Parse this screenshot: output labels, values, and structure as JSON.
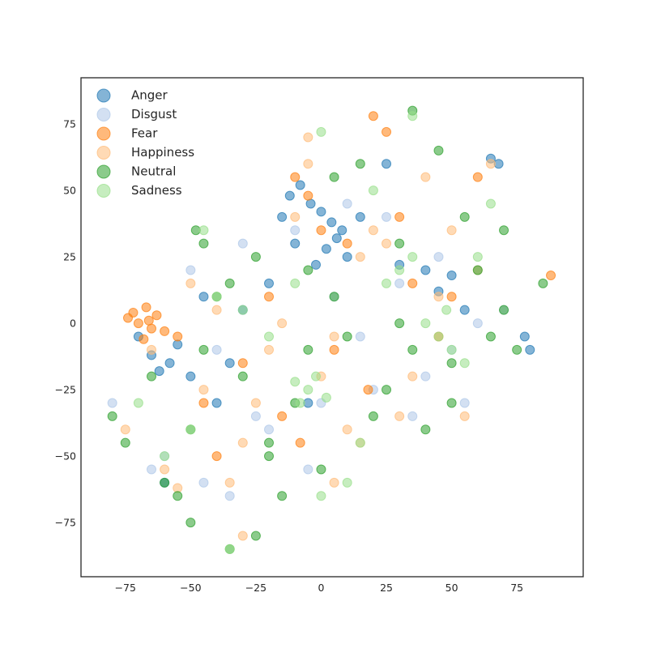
{
  "chart_data": {
    "type": "scatter",
    "xlim": [
      -92,
      100.4
    ],
    "ylim": [
      -95.4,
      92.4
    ],
    "xticks": [
      {
        "value": -75,
        "label": "−75"
      },
      {
        "value": -50,
        "label": "−50"
      },
      {
        "value": -25,
        "label": "−25"
      },
      0,
      25,
      50,
      75
    ],
    "yticks": [
      {
        "value": -75,
        "label": "−75"
      },
      {
        "value": -50,
        "label": "−50"
      },
      {
        "value": -25,
        "label": "−25"
      },
      0,
      25,
      50,
      75
    ],
    "legend": "upper left",
    "series": [
      {
        "name": "Anger",
        "color": "#1f77b4",
        "x": [
          -12,
          -8,
          -4,
          0,
          4,
          8,
          -15,
          -10,
          2,
          6,
          10,
          -2,
          -65,
          -62,
          -58,
          -55,
          -70,
          -50,
          -45,
          -30,
          -20,
          40,
          45,
          30,
          65,
          68,
          78,
          80,
          -5,
          15,
          25,
          50,
          -35,
          -40,
          55,
          -60
        ],
        "y": [
          48,
          52,
          45,
          42,
          38,
          35,
          40,
          30,
          28,
          32,
          25,
          22,
          -12,
          -18,
          -15,
          -8,
          -5,
          -20,
          10,
          5,
          15,
          20,
          12,
          22,
          62,
          60,
          -5,
          -10,
          -30,
          40,
          60,
          18,
          -15,
          -30,
          5,
          -60
        ]
      },
      {
        "name": "Disgust",
        "color": "#aec7e8",
        "x": [
          -80,
          -60,
          -40,
          -20,
          0,
          20,
          40,
          60,
          -50,
          -30,
          -10,
          10,
          30,
          50,
          70,
          -65,
          -45,
          -25,
          -5,
          15,
          35,
          55,
          -35,
          5,
          45,
          25
        ],
        "y": [
          -30,
          -50,
          -10,
          -40,
          -30,
          -25,
          -20,
          0,
          20,
          30,
          35,
          45,
          15,
          -10,
          5,
          -55,
          -60,
          -35,
          -55,
          -5,
          -35,
          -30,
          -65,
          10,
          25,
          40
        ]
      },
      {
        "name": "Fear",
        "color": "#ff7f0e",
        "x": [
          -72,
          -70,
          -67,
          -65,
          -63,
          -68,
          -66,
          -74,
          -60,
          -10,
          -5,
          0,
          -8,
          20,
          25,
          18,
          -20,
          -30,
          -40,
          45,
          50,
          60,
          30,
          35,
          -15,
          5,
          10,
          -45,
          -55,
          88
        ],
        "y": [
          4,
          0,
          6,
          -2,
          3,
          -6,
          1,
          2,
          -3,
          55,
          48,
          35,
          -45,
          78,
          72,
          -25,
          10,
          -15,
          -50,
          -5,
          10,
          55,
          40,
          15,
          -35,
          -10,
          30,
          -30,
          -5,
          18
        ]
      },
      {
        "name": "Happiness",
        "color": "#ffbb78",
        "x": [
          -75,
          -60,
          -45,
          -35,
          -25,
          -15,
          -5,
          5,
          15,
          25,
          35,
          45,
          55,
          65,
          -50,
          -30,
          -10,
          10,
          30,
          50,
          -40,
          -20,
          0,
          20,
          40,
          60,
          -65,
          -55,
          -5,
          15,
          -30,
          5
        ],
        "y": [
          -40,
          -55,
          -25,
          -60,
          -30,
          0,
          60,
          -60,
          25,
          30,
          -20,
          10,
          -35,
          60,
          15,
          -45,
          40,
          -40,
          -35,
          35,
          5,
          -10,
          -20,
          35,
          55,
          20,
          -10,
          -62,
          70,
          -45,
          -80,
          -5
        ]
      },
      {
        "name": "Neutral",
        "color": "#2ca02c",
        "x": [
          -48,
          -45,
          -80,
          -75,
          -60,
          -50,
          -40,
          -30,
          -20,
          -10,
          0,
          10,
          20,
          30,
          40,
          50,
          60,
          70,
          75,
          -35,
          -25,
          -15,
          -5,
          5,
          15,
          25,
          35,
          45,
          55,
          65,
          -45,
          -35,
          -25,
          -5,
          5,
          35,
          85,
          -50,
          -55,
          -20,
          30,
          50,
          70,
          -65
        ],
        "y": [
          35,
          30,
          -35,
          -45,
          -60,
          -75,
          10,
          -20,
          -45,
          -30,
          -55,
          -5,
          -35,
          30,
          -40,
          -15,
          20,
          5,
          -10,
          -85,
          -80,
          -65,
          -10,
          55,
          60,
          -25,
          80,
          65,
          40,
          -5,
          -10,
          15,
          25,
          20,
          10,
          -10,
          15,
          -40,
          -65,
          -50,
          0,
          -30,
          35,
          -20
        ]
      },
      {
        "name": "Sadness",
        "color": "#98df8a",
        "x": [
          -5,
          -8,
          -2,
          2,
          -10,
          0,
          45,
          50,
          40,
          48,
          55,
          25,
          30,
          35,
          20,
          -40,
          -30,
          -20,
          -50,
          -70,
          -60,
          -10,
          10,
          60,
          65,
          -35,
          0,
          15,
          35,
          -45
        ],
        "y": [
          -25,
          -30,
          -20,
          -28,
          -22,
          72,
          -5,
          -10,
          0,
          5,
          -15,
          15,
          20,
          25,
          50,
          10,
          5,
          -5,
          -40,
          -30,
          -50,
          15,
          -60,
          25,
          45,
          -85,
          -65,
          -45,
          78,
          35
        ]
      }
    ]
  }
}
